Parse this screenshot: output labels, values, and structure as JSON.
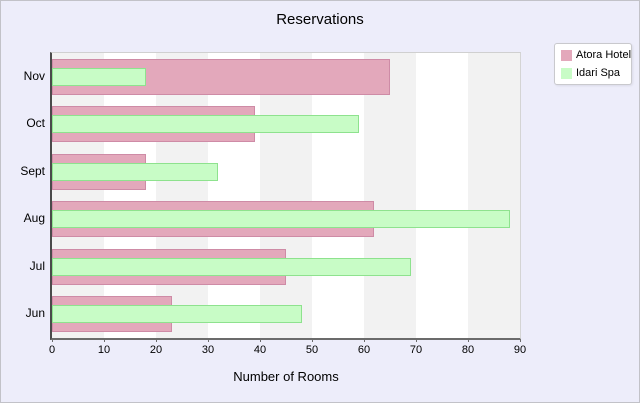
{
  "window": {
    "background_color": "#ededfa",
    "border_color": "#c2c2c8"
  },
  "colors": {
    "stripe_gray": "#f2f2f2",
    "stripe_white": "#ffffff",
    "axis_line": "#4a4a4a"
  },
  "chart_data": {
    "type": "bar",
    "orientation": "horizontal",
    "title": "Reservations",
    "xlabel": "Number of Rooms",
    "categories": [
      "Nov",
      "Oct",
      "Sept",
      "Aug",
      "Jul",
      "Jun"
    ],
    "series": [
      {
        "name": "Atora Hotel",
        "color": "#e3a8bb",
        "border_color": "#ce8ba6",
        "values": [
          65,
          39,
          18,
          62,
          45,
          23
        ]
      },
      {
        "name": "Idari Spa",
        "color": "#c8fcc6",
        "border_color": "#8ee28e",
        "values": [
          18,
          59,
          32,
          88,
          69,
          48
        ]
      }
    ],
    "xlim": [
      0,
      90
    ],
    "xticks": [
      0,
      10,
      20,
      30,
      40,
      50,
      60,
      70,
      80,
      90
    ],
    "grid": "vertical-stripes-every-10",
    "legend_position": "top-right-outside",
    "bar_style": "overlapped"
  }
}
